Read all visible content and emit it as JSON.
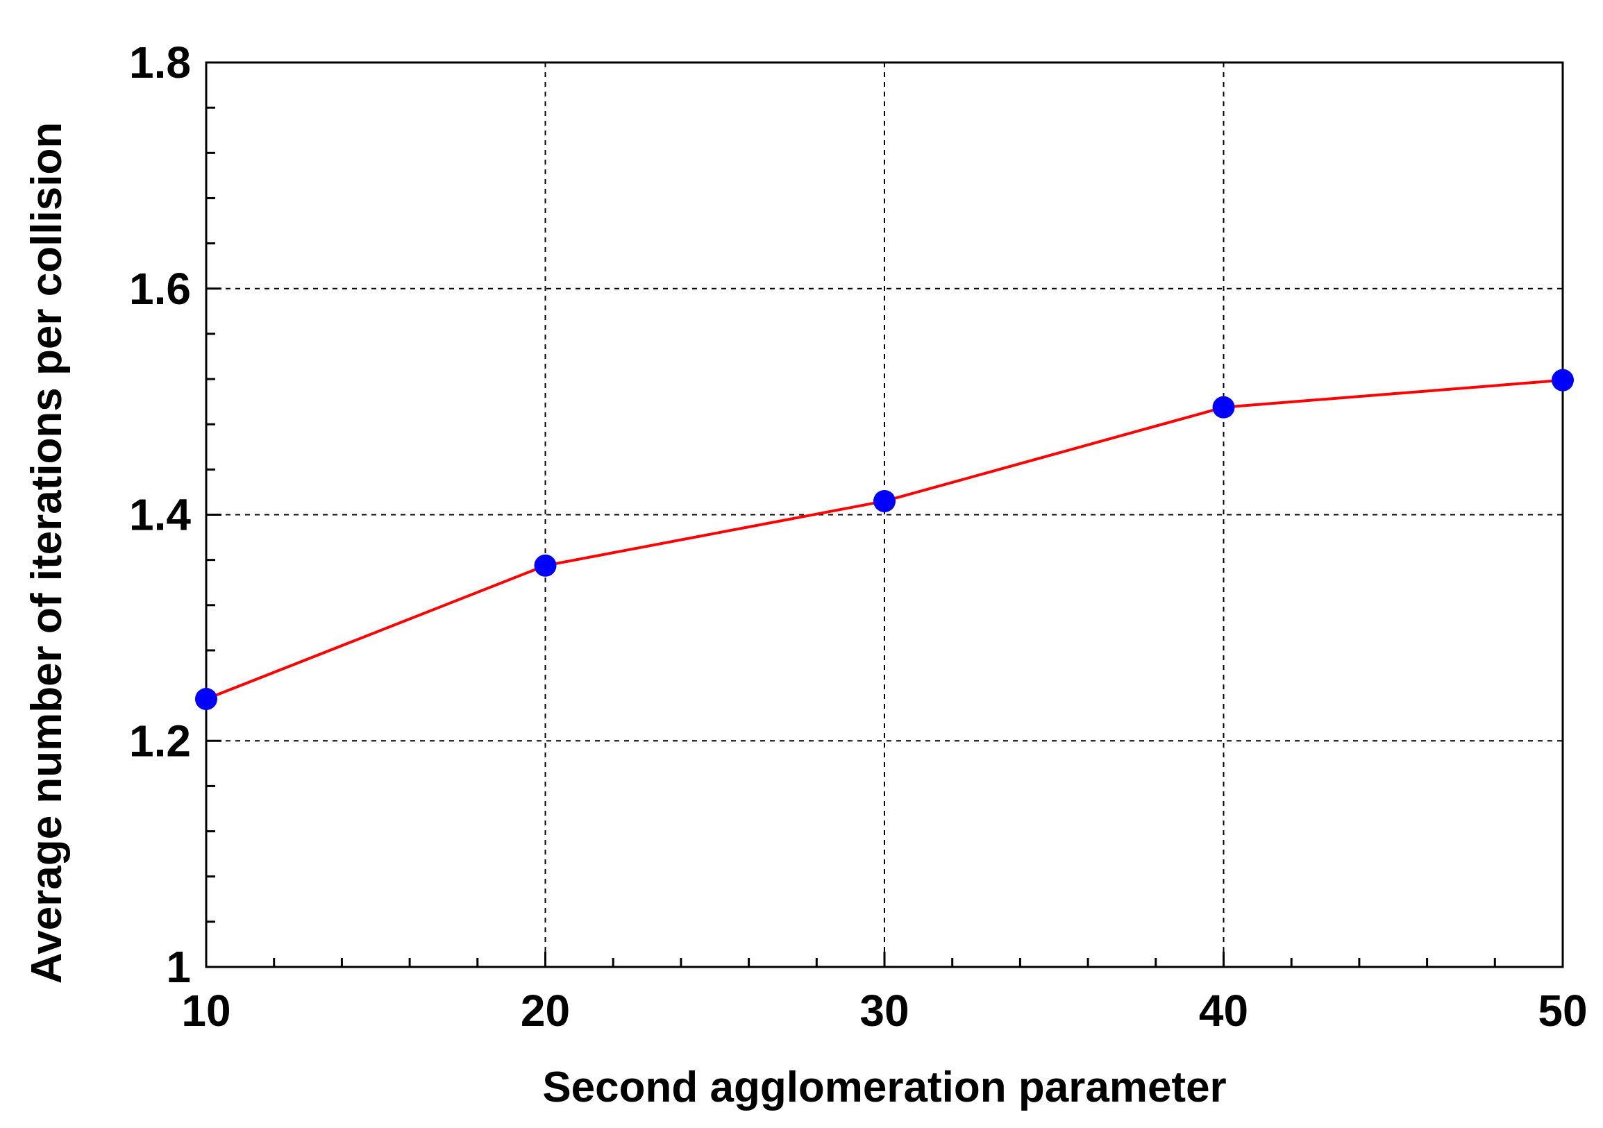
{
  "chart_data": {
    "type": "line",
    "title": "",
    "xlabel": "Second agglomeration parameter",
    "ylabel": "Average number of iterations per collision",
    "x": [
      10,
      20,
      30,
      40,
      50
    ],
    "series": [
      {
        "values": [
          1.237,
          1.355,
          1.412,
          1.495,
          1.519
        ]
      }
    ],
    "xlim": [
      10,
      50
    ],
    "ylim": [
      1.0,
      1.8
    ],
    "xticks": [
      10,
      20,
      30,
      40,
      50
    ],
    "xtick_labels": [
      "10",
      "20",
      "30",
      "40",
      "50"
    ],
    "yticks": [
      1.0,
      1.2,
      1.4,
      1.6,
      1.8
    ],
    "ytick_labels": [
      "1",
      "1.2",
      "1.4",
      "1.6",
      "1.8"
    ],
    "x_minor_step": 2,
    "y_minor_step": 0.04,
    "grid": true,
    "grid_style": "dashed",
    "line_color": "#ff0000",
    "marker_color": "#0000ff",
    "legend": "none"
  }
}
